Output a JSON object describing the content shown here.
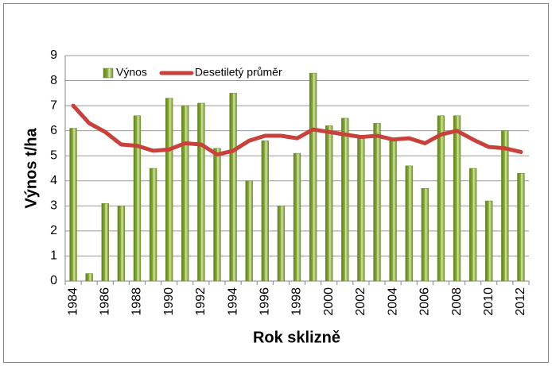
{
  "chart_data": {
    "type": "bar",
    "y_label": "Výnos t/ha",
    "x_label": "Rok sklizně",
    "categories": [
      "1984",
      null,
      "1986",
      null,
      "1988",
      null,
      "1990",
      null,
      "1992",
      null,
      "1994",
      null,
      "1996",
      null,
      "1998",
      null,
      "2000",
      null,
      "2002",
      null,
      "2004",
      null,
      "2006",
      null,
      "2008",
      null,
      "2010",
      null,
      "2012"
    ],
    "series": [
      {
        "name": "Výnos",
        "type": "bar",
        "color": "#8aae3a",
        "values": [
          6.1,
          0.3,
          3.1,
          3.0,
          6.6,
          4.5,
          7.3,
          7.0,
          7.1,
          5.3,
          7.5,
          4.0,
          5.6,
          3.0,
          5.1,
          8.3,
          6.2,
          6.5,
          5.8,
          6.3,
          5.6,
          4.6,
          3.7,
          6.6,
          6.6,
          4.5,
          3.2,
          6.0,
          4.3
        ]
      },
      {
        "name": "Desetiletý průměr",
        "type": "line",
        "color": "#c8413b",
        "values": [
          7.0,
          6.3,
          5.95,
          5.45,
          5.4,
          5.2,
          5.25,
          5.5,
          5.45,
          5.05,
          5.2,
          5.6,
          5.8,
          5.8,
          5.7,
          6.05,
          5.95,
          5.85,
          5.75,
          5.8,
          5.65,
          5.7,
          5.5,
          5.85,
          6.0,
          5.65,
          5.35,
          5.3,
          5.15
        ]
      }
    ],
    "ylim": [
      0,
      9
    ],
    "yticks": [
      0,
      1,
      2,
      3,
      4,
      5,
      6,
      7,
      8,
      9
    ],
    "grid": true,
    "legend": "top-left"
  }
}
